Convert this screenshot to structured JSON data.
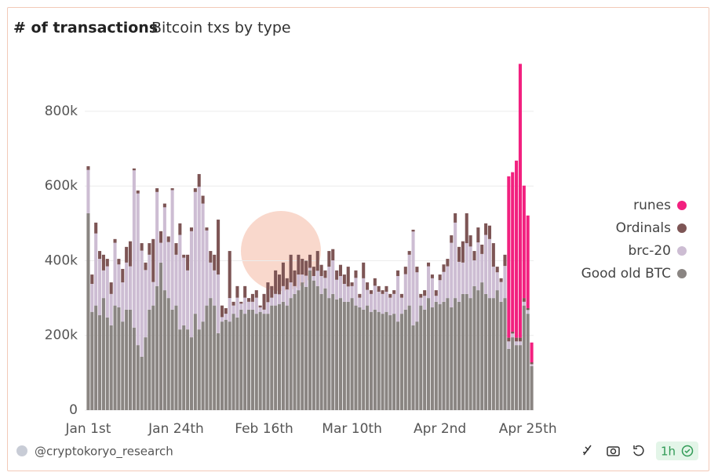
{
  "chart_data": {
    "type": "stacked-bar",
    "title": "# of transactions",
    "subtitle": "Bitcoin txs by type",
    "categories": [
      "Jan 1st",
      null,
      null,
      null,
      null,
      null,
      null,
      null,
      null,
      null,
      null,
      null,
      null,
      null,
      null,
      null,
      null,
      null,
      null,
      null,
      null,
      null,
      null,
      "Jan 24th",
      null,
      null,
      null,
      null,
      null,
      null,
      null,
      null,
      null,
      null,
      null,
      null,
      null,
      null,
      null,
      null,
      null,
      null,
      null,
      null,
      null,
      null,
      "Feb 16th",
      null,
      null,
      null,
      null,
      null,
      null,
      null,
      null,
      null,
      null,
      null,
      null,
      null,
      null,
      null,
      null,
      null,
      null,
      null,
      null,
      null,
      null,
      "Mar 10th",
      null,
      null,
      null,
      null,
      null,
      null,
      null,
      null,
      null,
      null,
      null,
      null,
      null,
      null,
      null,
      null,
      null,
      null,
      null,
      null,
      null,
      null,
      "Apr 2nd",
      null,
      null,
      null,
      null,
      null,
      null,
      null,
      null,
      null,
      null,
      null,
      null,
      null,
      null,
      null,
      null,
      null,
      null,
      null,
      null,
      null,
      null,
      "Apr 25th",
      null
    ],
    "series": [
      {
        "name": "Good old BTC",
        "color": "#8a8582",
        "values": [
          527000,
          263000,
          280000,
          254000,
          300000,
          248000,
          227000,
          280000,
          275000,
          237000,
          269000,
          269000,
          221000,
          174000,
          143000,
          195000,
          269000,
          280000,
          332000,
          395000,
          321000,
          300000,
          269000,
          280000,
          216000,
          227000,
          216000,
          195000,
          258000,
          216000,
          237000,
          280000,
          300000,
          280000,
          206000,
          237000,
          242000,
          237000,
          258000,
          248000,
          269000,
          258000,
          269000,
          269000,
          258000,
          263000,
          258000,
          258000,
          280000,
          280000,
          284000,
          290000,
          280000,
          300000,
          311000,
          321000,
          342000,
          330000,
          374000,
          347000,
          332000,
          311000,
          326000,
          300000,
          311000,
          296000,
          300000,
          290000,
          290000,
          300000,
          280000,
          275000,
          269000,
          280000,
          263000,
          269000,
          263000,
          258000,
          263000,
          254000,
          258000,
          237000,
          258000,
          269000,
          280000,
          227000,
          237000,
          280000,
          269000,
          300000,
          275000,
          290000,
          284000,
          290000,
          300000,
          275000,
          300000,
          290000,
          311000,
          311000,
          300000,
          332000,
          321000,
          342000,
          311000,
          300000,
          300000,
          321000,
          290000,
          300000,
          164000,
          195000,
          174000,
          174000,
          280000,
          258000,
          118000
        ]
      },
      {
        "name": "brc-20",
        "color": "#cdbdd3",
        "values": [
          116000,
          75000,
          193000,
          151000,
          74000,
          137000,
          84000,
          168000,
          115000,
          105000,
          126000,
          116000,
          421000,
          406000,
          284000,
          180000,
          147000,
          63000,
          252000,
          53000,
          222000,
          150000,
          320000,
          136000,
          253000,
          181000,
          158000,
          284000,
          326000,
          382000,
          316000,
          201000,
          95000,
          94000,
          157000,
          12000,
          16000,
          63000,
          22000,
          53000,
          16000,
          43000,
          21000,
          21000,
          43000,
          12000,
          11000,
          31000,
          21000,
          31000,
          26000,
          42000,
          43000,
          42000,
          21000,
          42000,
          21000,
          30000,
          7000,
          12000,
          41000,
          48000,
          28000,
          84000,
          90000,
          53000,
          59000,
          48000,
          41000,
          32000,
          74000,
          26000,
          84000,
          42000,
          48000,
          64000,
          54000,
          53000,
          54000,
          47000,
          53000,
          122000,
          43000,
          95000,
          136000,
          251000,
          132000,
          21000,
          37000,
          85000,
          78000,
          16000,
          64000,
          80000,
          85000,
          173000,
          202000,
          107000,
          84000,
          136000,
          138000,
          69000,
          128000,
          76000,
          158000,
          158000,
          84000,
          48000,
          53000,
          86000,
          20000,
          10000,
          10000,
          10000,
          10000,
          10000,
          5000
        ]
      },
      {
        "name": "Ordinals",
        "color": "#7d5555",
        "values": [
          10000,
          25000,
          29000,
          21000,
          42000,
          20000,
          31000,
          10000,
          15000,
          36000,
          42000,
          67000,
          5000,
          8000,
          20000,
          20000,
          31000,
          115000,
          10000,
          31000,
          10000,
          15000,
          5000,
          31000,
          31000,
          8000,
          42000,
          10000,
          10000,
          34000,
          21000,
          8000,
          31000,
          42000,
          147000,
          31000,
          15000,
          126000,
          10000,
          31000,
          5000,
          31000,
          10000,
          21000,
          20000,
          5000,
          42000,
          53000,
          31000,
          63000,
          53000,
          63000,
          30000,
          74000,
          42000,
          53000,
          42000,
          40000,
          35000,
          25000,
          53000,
          30000,
          20000,
          42000,
          30000,
          25000,
          30000,
          25000,
          53000,
          10000,
          20000,
          10000,
          42000,
          20000,
          10000,
          20000,
          15000,
          10000,
          15000,
          10000,
          10000,
          15000,
          10000,
          20000,
          10000,
          5000,
          15000,
          10000,
          15000,
          10000,
          10000,
          15000,
          15000,
          20000,
          20000,
          20000,
          25000,
          40000,
          57000,
          80000,
          30000,
          25000,
          40000,
          25000,
          31000,
          36000,
          63000,
          15000,
          10000,
          30000,
          10000,
          5000,
          10000,
          10000,
          10000,
          5000,
          5000
        ]
      },
      {
        "name": "runes",
        "color": "#f2207f",
        "values": [
          0,
          0,
          0,
          0,
          0,
          0,
          0,
          0,
          0,
          0,
          0,
          0,
          0,
          0,
          0,
          0,
          0,
          0,
          0,
          0,
          0,
          0,
          0,
          0,
          0,
          0,
          0,
          0,
          0,
          0,
          0,
          0,
          0,
          0,
          0,
          0,
          0,
          0,
          0,
          0,
          0,
          0,
          0,
          0,
          0,
          0,
          0,
          0,
          0,
          0,
          0,
          0,
          0,
          0,
          0,
          0,
          0,
          0,
          0,
          0,
          0,
          0,
          0,
          0,
          0,
          0,
          0,
          0,
          0,
          0,
          0,
          0,
          0,
          0,
          0,
          0,
          0,
          0,
          0,
          0,
          0,
          0,
          0,
          0,
          0,
          0,
          0,
          0,
          0,
          0,
          0,
          0,
          0,
          0,
          0,
          0,
          0,
          0,
          0,
          0,
          0,
          0,
          0,
          0,
          0,
          0,
          0,
          0,
          0,
          0,
          432000,
          427000,
          474000,
          733000,
          301000,
          248000,
          53000
        ]
      }
    ],
    "ylim": [
      0,
      930000
    ],
    "yticks": [
      0,
      {
        "value": 200000,
        "label": "200k"
      },
      {
        "value": 400000,
        "label": "400k"
      },
      {
        "value": 600000,
        "label": "600k"
      },
      {
        "value": 800000,
        "label": "800k"
      }
    ],
    "grid": true,
    "legend": "right"
  },
  "footer": {
    "author": "@cryptokoryo_research",
    "refresh": "1h"
  }
}
